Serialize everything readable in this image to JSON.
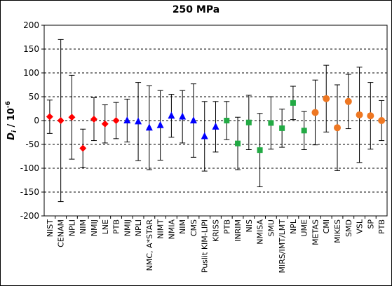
{
  "chart_data": {
    "type": "scatter",
    "title": "250 MPa",
    "ylabel_main": "D",
    "ylabel_sub": "i",
    "ylabel_rest": " / 10",
    "ylabel_exp": "-6",
    "ylim": [
      -200,
      200
    ],
    "yticks": [
      -200,
      -150,
      -100,
      -50,
      0,
      50,
      100,
      150,
      200
    ],
    "grid": "horizontal dashed",
    "categories": [
      "NIST",
      "CENAM",
      "NPLI",
      "NIM",
      "NMIJ",
      "LNE",
      "PTB",
      "NMIJ",
      "NPLI",
      "NMC, A*STAR",
      "NIMT",
      "NMIA",
      "NIM",
      "CMS",
      "Puslit KIM-LIPI",
      "KRISS",
      "PTB",
      "INRIM",
      "NIS",
      "NMISA",
      "SMU",
      "MIRS/IMT/LMT",
      "NPL",
      "UME",
      "METAS",
      "CMI",
      "MIKES",
      "SMD",
      "VSL",
      "SP",
      "PTB"
    ],
    "series": [
      {
        "marker": "diamond",
        "color": "#ff0000",
        "indices": [
          0,
          1,
          2,
          3,
          4,
          5,
          6
        ],
        "values": [
          8,
          0,
          7,
          -58,
          3,
          -7,
          0
        ],
        "uncertainty": [
          35,
          170,
          88,
          40,
          45,
          40,
          38
        ]
      },
      {
        "marker": "triangle",
        "color": "#0000ff",
        "indices": [
          7,
          8,
          9,
          10,
          11,
          12,
          13,
          14,
          15
        ],
        "values": [
          0,
          -2,
          -15,
          -10,
          10,
          8,
          0,
          -33,
          -13
        ],
        "uncertainty": [
          45,
          82,
          88,
          73,
          45,
          55,
          77,
          73,
          53
        ]
      },
      {
        "marker": "square",
        "color": "#22aa44",
        "indices": [
          16,
          17,
          18,
          19,
          20,
          21,
          22,
          23
        ],
        "values": [
          0,
          -48,
          -4,
          -62,
          -5,
          -16,
          37,
          -21
        ],
        "uncertainty": [
          40,
          55,
          57,
          77,
          55,
          40,
          35,
          40
        ]
      },
      {
        "marker": "circle",
        "color": "#ee7722",
        "indices": [
          24,
          25,
          26,
          27,
          28,
          29,
          30
        ],
        "values": [
          17,
          46,
          -15,
          40,
          12,
          10,
          0
        ],
        "uncertainty": [
          68,
          70,
          90,
          57,
          100,
          70,
          42
        ]
      }
    ]
  }
}
